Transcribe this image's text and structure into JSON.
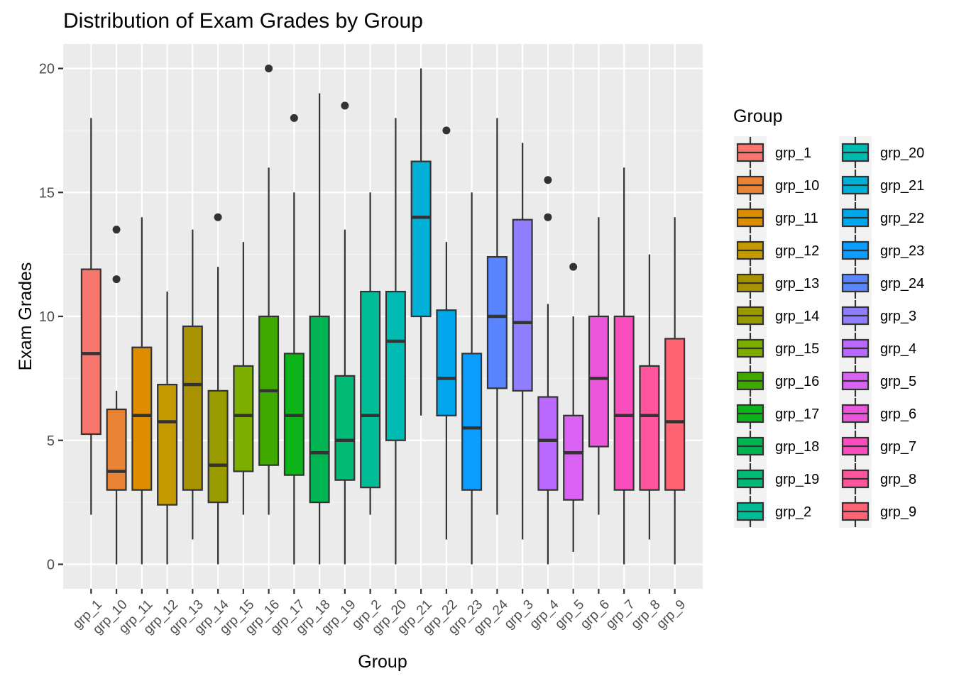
{
  "chart_data": {
    "type": "box",
    "title": "Distribution of Exam Grades by Group",
    "xlabel": "Group",
    "ylabel": "Exam Grades",
    "ylim": [
      -1,
      21
    ],
    "yticks": [
      0,
      5,
      10,
      15,
      20
    ],
    "grid": true,
    "legend": {
      "title": "Group",
      "placement": "right",
      "columns": 2
    },
    "categories": [
      "grp_1",
      "grp_10",
      "grp_11",
      "grp_12",
      "grp_13",
      "grp_14",
      "grp_15",
      "grp_16",
      "grp_17",
      "grp_18",
      "grp_19",
      "grp_2",
      "grp_20",
      "grp_21",
      "grp_22",
      "grp_23",
      "grp_24",
      "grp_3",
      "grp_4",
      "grp_5",
      "grp_6",
      "grp_7",
      "grp_8",
      "grp_9"
    ],
    "legend_order": [
      "grp_1",
      "grp_10",
      "grp_11",
      "grp_12",
      "grp_13",
      "grp_14",
      "grp_15",
      "grp_16",
      "grp_17",
      "grp_18",
      "grp_19",
      "grp_2",
      "grp_20",
      "grp_21",
      "grp_22",
      "grp_23",
      "grp_24",
      "grp_3",
      "grp_4",
      "grp_5",
      "grp_6",
      "grp_7",
      "grp_8",
      "grp_9"
    ],
    "boxes": [
      {
        "name": "grp_1",
        "color": "#F8766D",
        "min": 2,
        "q1": 5.25,
        "median": 8.5,
        "q3": 11.9,
        "max": 18,
        "outliers": []
      },
      {
        "name": "grp_10",
        "color": "#EB8335",
        "min": 0,
        "q1": 3,
        "median": 3.75,
        "q3": 6.25,
        "max": 7,
        "outliers": [
          11.5,
          13.5
        ]
      },
      {
        "name": "grp_11",
        "color": "#DE8C00",
        "min": 0,
        "q1": 3,
        "median": 6,
        "q3": 8.75,
        "max": 14,
        "outliers": []
      },
      {
        "name": "grp_12",
        "color": "#C49A00",
        "min": 0,
        "q1": 2.4,
        "median": 5.75,
        "q3": 7.25,
        "max": 11,
        "outliers": []
      },
      {
        "name": "grp_13",
        "color": "#A89200",
        "min": 1,
        "q1": 3,
        "median": 7.25,
        "q3": 9.6,
        "max": 13.5,
        "outliers": []
      },
      {
        "name": "grp_14",
        "color": "#999A00",
        "min": 0,
        "q1": 2.5,
        "median": 4,
        "q3": 7,
        "max": 12,
        "outliers": [
          14
        ]
      },
      {
        "name": "grp_15",
        "color": "#7CAE00",
        "min": 2,
        "q1": 3.75,
        "median": 6,
        "q3": 8,
        "max": 13,
        "outliers": []
      },
      {
        "name": "grp_16",
        "color": "#3EAA00",
        "min": 2,
        "q1": 4,
        "median": 7,
        "q3": 10,
        "max": 16,
        "outliers": [
          20
        ]
      },
      {
        "name": "grp_17",
        "color": "#0CB41A",
        "min": 0,
        "q1": 3.6,
        "median": 6,
        "q3": 8.5,
        "max": 15,
        "outliers": [
          18
        ]
      },
      {
        "name": "grp_18",
        "color": "#00B551",
        "min": 0,
        "q1": 2.5,
        "median": 4.5,
        "q3": 10,
        "max": 19,
        "outliers": []
      },
      {
        "name": "grp_19",
        "color": "#00BA76",
        "min": 0,
        "q1": 3.4,
        "median": 5,
        "q3": 7.6,
        "max": 13.5,
        "outliers": [
          18.5
        ]
      },
      {
        "name": "grp_2",
        "color": "#00BD97",
        "min": 2,
        "q1": 3.1,
        "median": 6,
        "q3": 11,
        "max": 15,
        "outliers": []
      },
      {
        "name": "grp_20",
        "color": "#00BBB1",
        "min": 0,
        "q1": 5,
        "median": 9,
        "q3": 11,
        "max": 18,
        "outliers": []
      },
      {
        "name": "grp_21",
        "color": "#00B0D6",
        "min": 6,
        "q1": 10,
        "median": 14,
        "q3": 16.25,
        "max": 20,
        "outliers": []
      },
      {
        "name": "grp_22",
        "color": "#00A7EC",
        "min": 1,
        "q1": 6,
        "median": 7.5,
        "q3": 10.25,
        "max": 13,
        "outliers": [
          17.5
        ]
      },
      {
        "name": "grp_23",
        "color": "#0B9EFF",
        "min": 0,
        "q1": 3,
        "median": 5.5,
        "q3": 8.5,
        "max": 15,
        "outliers": []
      },
      {
        "name": "grp_24",
        "color": "#5986FF",
        "min": 2,
        "q1": 7.1,
        "median": 10,
        "q3": 12.4,
        "max": 18,
        "outliers": []
      },
      {
        "name": "grp_3",
        "color": "#8F7EFF",
        "min": 1,
        "q1": 7,
        "median": 9.75,
        "q3": 13.9,
        "max": 17,
        "outliers": []
      },
      {
        "name": "grp_4",
        "color": "#BB68FF",
        "min": 0,
        "q1": 3,
        "median": 5,
        "q3": 6.75,
        "max": 10.5,
        "outliers": [
          14,
          15.5
        ]
      },
      {
        "name": "grp_5",
        "color": "#DA63F3",
        "min": 0.5,
        "q1": 2.6,
        "median": 4.5,
        "q3": 6,
        "max": 10,
        "outliers": [
          12
        ]
      },
      {
        "name": "grp_6",
        "color": "#EB57DB",
        "min": 2,
        "q1": 4.75,
        "median": 7.5,
        "q3": 10,
        "max": 14,
        "outliers": []
      },
      {
        "name": "grp_7",
        "color": "#FA4EBE",
        "min": 0,
        "q1": 3,
        "median": 6,
        "q3": 10,
        "max": 16,
        "outliers": []
      },
      {
        "name": "grp_8",
        "color": "#FF559D",
        "min": 1,
        "q1": 3,
        "median": 6,
        "q3": 8,
        "max": 12.5,
        "outliers": []
      },
      {
        "name": "grp_9",
        "color": "#FF6374",
        "min": 0,
        "q1": 3,
        "median": 5.75,
        "q3": 9.1,
        "max": 14,
        "outliers": []
      }
    ]
  }
}
